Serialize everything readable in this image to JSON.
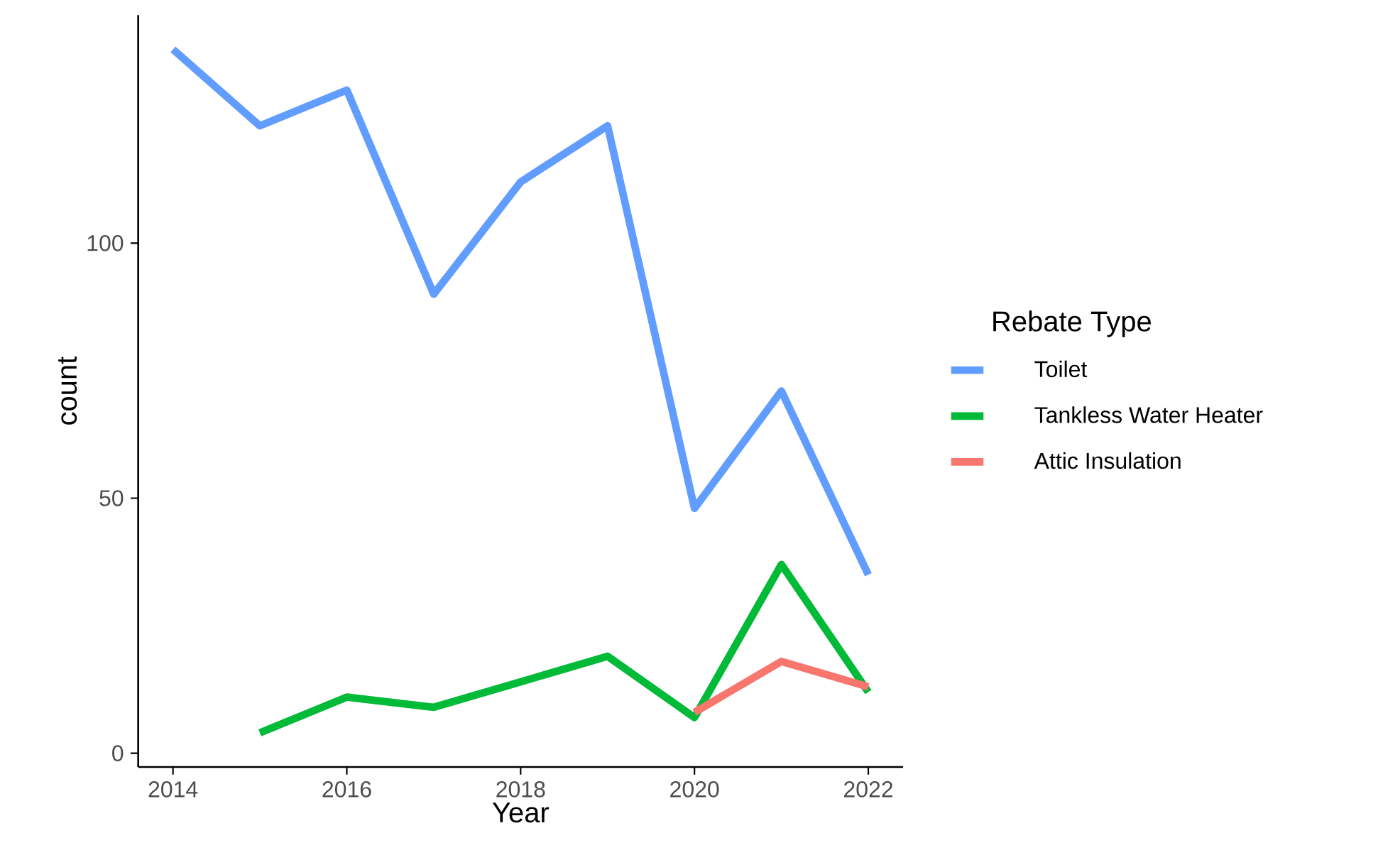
{
  "chart_data": {
    "type": "line",
    "xlabel": "Year",
    "ylabel": "count",
    "legend_title": "Rebate Type",
    "legend": "right",
    "grid": false,
    "xlim": [
      2013.6,
      2022.4
    ],
    "ylim": [
      -2.7,
      144.7
    ],
    "xticks": [
      2014,
      2016,
      2018,
      2020,
      2022
    ],
    "yticks": [
      0,
      50,
      100
    ],
    "series": [
      {
        "name": "Toilet",
        "color": "#619cff",
        "x": [
          2014,
          2015,
          2016,
          2017,
          2018,
          2019,
          2020,
          2021,
          2022
        ],
        "values": [
          138,
          123,
          130,
          90,
          112,
          123,
          48,
          71,
          35
        ]
      },
      {
        "name": "Tankless Water Heater",
        "color": "#00ba38",
        "x": [
          2015,
          2016,
          2017,
          2018,
          2019,
          2020,
          2021,
          2022
        ],
        "values": [
          4,
          11,
          9,
          14,
          19,
          7,
          37,
          12
        ]
      },
      {
        "name": "Attic Insulation",
        "color": "#f8766d",
        "x": [
          2020,
          2021,
          2022
        ],
        "values": [
          8,
          18,
          13
        ]
      }
    ]
  }
}
